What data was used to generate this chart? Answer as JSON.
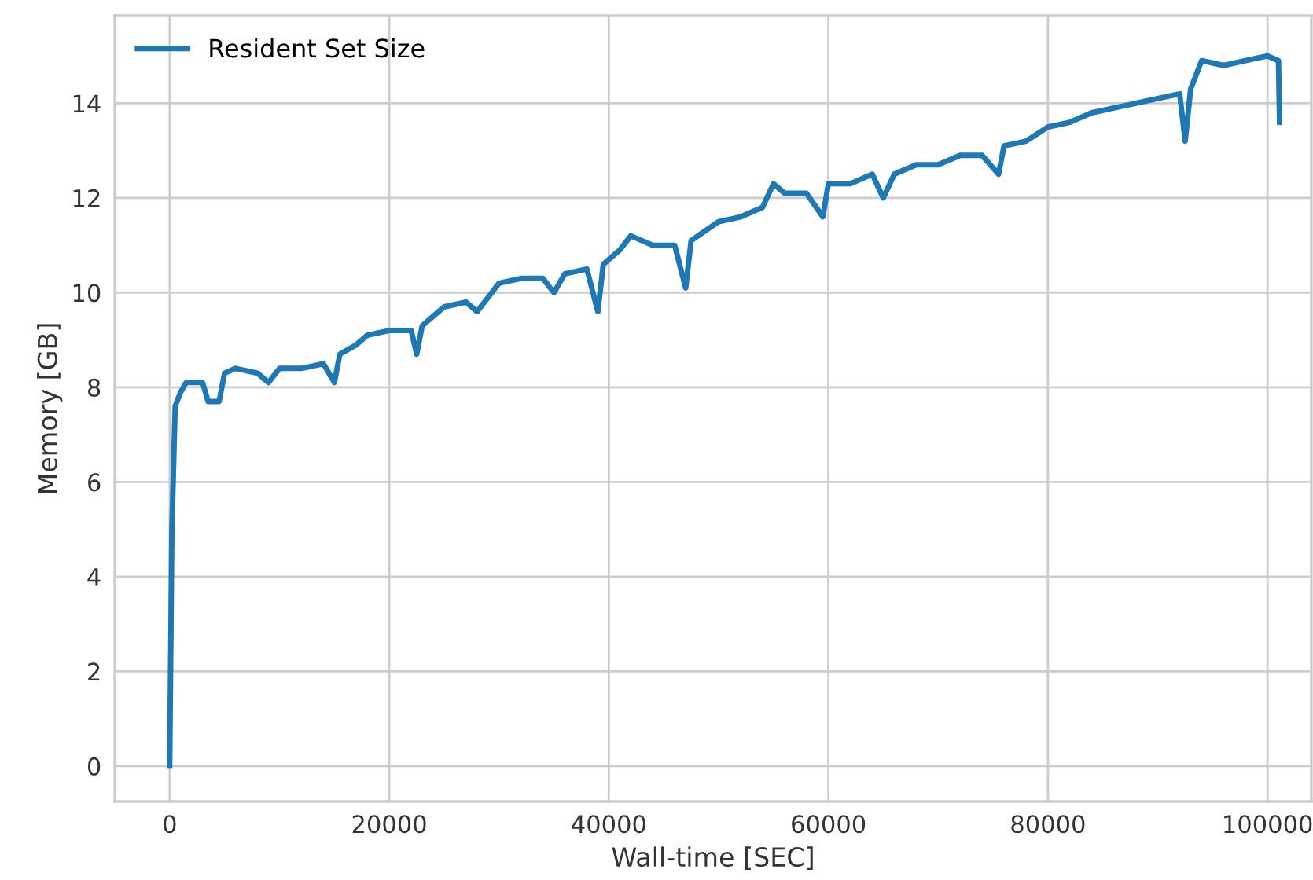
{
  "chart_data": {
    "type": "line",
    "xlabel": "Wall-time [SEC]",
    "ylabel": "Memory [GB]",
    "xlim": [
      -5000,
      104000
    ],
    "xticks": [
      0,
      20000,
      40000,
      60000,
      80000,
      100000
    ],
    "ylim": [
      -0.75,
      15.85
    ],
    "yticks": [
      0,
      2,
      4,
      6,
      8,
      10,
      12,
      14
    ],
    "grid": true,
    "legend": "top left",
    "marker": "none",
    "line_style": "solid",
    "series": [
      {
        "name": "Resident Set Size",
        "color": "#1f77b4",
        "x": [
          0,
          200,
          500,
          1000,
          1500,
          3000,
          3500,
          4500,
          5000,
          6000,
          8000,
          9000,
          10000,
          12000,
          14000,
          15000,
          15500,
          17000,
          18000,
          20000,
          22000,
          22500,
          23000,
          25000,
          27000,
          28000,
          30000,
          32000,
          34000,
          35000,
          36000,
          38000,
          39000,
          39500,
          41000,
          42000,
          44000,
          46000,
          47000,
          47500,
          50000,
          52000,
          54000,
          55000,
          56000,
          58000,
          59500,
          60000,
          62000,
          64000,
          65000,
          66000,
          68000,
          70000,
          72000,
          74000,
          75500,
          76000,
          78000,
          80000,
          82000,
          84000,
          86000,
          88000,
          90000,
          92000,
          92500,
          93000,
          94000,
          96000,
          98000,
          100000,
          101000,
          101100
        ],
        "values": [
          0.0,
          5.0,
          7.6,
          7.9,
          8.1,
          8.1,
          7.7,
          7.7,
          8.3,
          8.4,
          8.3,
          8.1,
          8.4,
          8.4,
          8.5,
          8.1,
          8.7,
          8.9,
          9.1,
          9.2,
          9.2,
          8.7,
          9.3,
          9.7,
          9.8,
          9.6,
          10.2,
          10.3,
          10.3,
          10.0,
          10.4,
          10.5,
          9.6,
          10.6,
          10.9,
          11.2,
          11.0,
          11.0,
          10.1,
          11.1,
          11.5,
          11.6,
          11.8,
          12.3,
          12.1,
          12.1,
          11.6,
          12.3,
          12.3,
          12.5,
          12.0,
          12.5,
          12.7,
          12.7,
          12.9,
          12.9,
          12.5,
          13.1,
          13.2,
          13.5,
          13.6,
          13.8,
          13.9,
          14.0,
          14.1,
          14.2,
          13.2,
          14.3,
          14.9,
          14.8,
          14.9,
          15.0,
          14.9,
          13.6
        ]
      }
    ]
  }
}
